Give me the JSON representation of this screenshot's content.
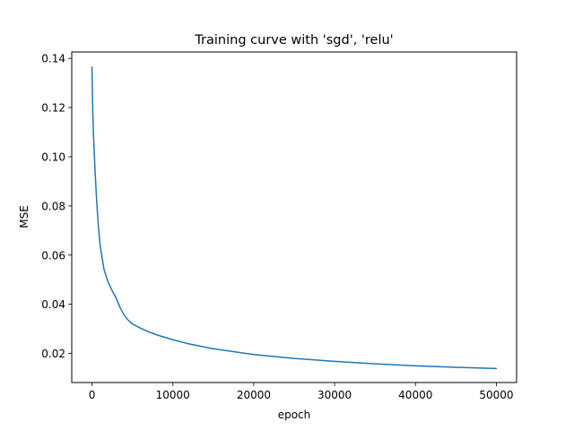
{
  "chart_data": {
    "type": "line",
    "title": "Training curve with 'sgd', 'relu'",
    "xlabel": "epoch",
    "ylabel": "MSE",
    "xlim": [
      -2500,
      52500
    ],
    "ylim": [
      0.0082,
      0.1426
    ],
    "grid": false,
    "x_ticks": [
      0,
      10000,
      20000,
      30000,
      40000,
      50000
    ],
    "x_tick_labels": [
      "0",
      "10000",
      "20000",
      "30000",
      "40000",
      "50000"
    ],
    "y_ticks": [
      0.02,
      0.04,
      0.06,
      0.08,
      0.1,
      0.12,
      0.14
    ],
    "y_tick_labels": [
      "0.02",
      "0.04",
      "0.06",
      "0.08",
      "0.10",
      "0.12",
      "0.14"
    ],
    "series": [
      {
        "color": "#1f77b4",
        "x": [
          0,
          100,
          200,
          400,
          600,
          800,
          1000,
          1200,
          1500,
          2000,
          2500,
          3000,
          3500,
          4000,
          4500,
          5000,
          6000,
          7000,
          8000,
          10000,
          12000,
          15000,
          20000,
          25000,
          30000,
          35000,
          40000,
          45000,
          50000
        ],
        "y": [
          0.1365,
          0.118,
          0.108,
          0.093,
          0.081,
          0.0715,
          0.0645,
          0.06,
          0.054,
          0.049,
          0.0455,
          0.0425,
          0.0385,
          0.0355,
          0.0335,
          0.032,
          0.0303,
          0.0288,
          0.0276,
          0.0256,
          0.0239,
          0.0219,
          0.0196,
          0.018,
          0.0168,
          0.0158,
          0.015,
          0.0144,
          0.0139
        ]
      }
    ]
  }
}
